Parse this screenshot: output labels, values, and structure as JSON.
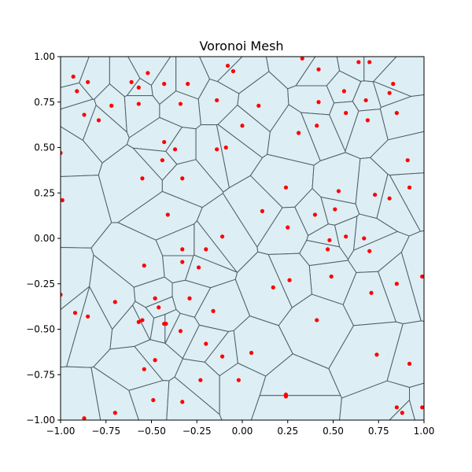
{
  "chart_data": {
    "type": "scatter",
    "title": "Voronoi Mesh",
    "xlabel": "",
    "ylabel": "",
    "xlim": [
      -1.0,
      1.0
    ],
    "ylim": [
      -1.0,
      1.0
    ],
    "xticks": [
      "−1.00",
      "−0.75",
      "−0.50",
      "−0.25",
      "0.00",
      "0.25",
      "0.50",
      "0.75",
      "1.00"
    ],
    "yticks": [
      "−1.00",
      "−0.75",
      "−0.50",
      "−0.25",
      "0.00",
      "0.25",
      "0.50",
      "0.75",
      "1.00"
    ],
    "grid": false,
    "legend": "none",
    "colors": {
      "cell_fill": "#ddeef5",
      "cell_edge": "#4f5f66",
      "point": "#ff0000"
    },
    "points": [
      [
        -0.93,
        0.89
      ],
      [
        -0.91,
        0.81
      ],
      [
        -0.85,
        0.86
      ],
      [
        -0.87,
        0.68
      ],
      [
        -0.79,
        0.65
      ],
      [
        -0.72,
        0.73
      ],
      [
        -0.61,
        0.86
      ],
      [
        -0.57,
        0.83
      ],
      [
        -0.57,
        0.74
      ],
      [
        -0.52,
        0.91
      ],
      [
        -0.43,
        0.85
      ],
      [
        -0.34,
        0.74
      ],
      [
        -0.3,
        0.85
      ],
      [
        -0.14,
        0.76
      ],
      [
        -0.08,
        0.95
      ],
      [
        -0.05,
        0.92
      ],
      [
        0.0,
        0.62
      ],
      [
        0.09,
        0.73
      ],
      [
        0.33,
        0.99
      ],
      [
        0.42,
        0.93
      ],
      [
        0.42,
        0.75
      ],
      [
        0.41,
        0.62
      ],
      [
        0.31,
        0.58
      ],
      [
        0.56,
        0.81
      ],
      [
        0.64,
        0.97
      ],
      [
        0.7,
        0.97
      ],
      [
        0.81,
        0.8
      ],
      [
        0.83,
        0.85
      ],
      [
        0.68,
        0.76
      ],
      [
        0.69,
        0.65
      ],
      [
        0.85,
        0.69
      ],
      [
        0.57,
        0.69
      ],
      [
        -1.0,
        0.47
      ],
      [
        -0.43,
        0.53
      ],
      [
        -0.37,
        0.49
      ],
      [
        -0.44,
        0.43
      ],
      [
        -0.14,
        0.49
      ],
      [
        -0.09,
        0.5
      ],
      [
        -0.55,
        0.33
      ],
      [
        -0.33,
        0.33
      ],
      [
        -0.41,
        0.13
      ],
      [
        -0.99,
        0.21
      ],
      [
        0.24,
        0.28
      ],
      [
        0.53,
        0.26
      ],
      [
        0.51,
        0.16
      ],
      [
        0.73,
        0.24
      ],
      [
        0.81,
        0.22
      ],
      [
        0.91,
        0.43
      ],
      [
        0.92,
        0.28
      ],
      [
        0.11,
        0.15
      ],
      [
        0.4,
        0.13
      ],
      [
        0.25,
        0.06
      ],
      [
        -0.11,
        0.01
      ],
      [
        -0.2,
        -0.06
      ],
      [
        -0.33,
        -0.06
      ],
      [
        -0.33,
        -0.13
      ],
      [
        -0.24,
        -0.16
      ],
      [
        -0.54,
        -0.15
      ],
      [
        0.48,
        -0.01
      ],
      [
        0.47,
        -0.06
      ],
      [
        0.57,
        0.01
      ],
      [
        0.67,
        0.0
      ],
      [
        0.7,
        -0.07
      ],
      [
        0.85,
        -0.25
      ],
      [
        0.99,
        -0.21
      ],
      [
        0.49,
        -0.21
      ],
      [
        0.26,
        -0.23
      ],
      [
        0.17,
        -0.27
      ],
      [
        -1.0,
        -0.31
      ],
      [
        -0.7,
        -0.35
      ],
      [
        -0.48,
        -0.33
      ],
      [
        -0.29,
        -0.33
      ],
      [
        -0.46,
        -0.38
      ],
      [
        -0.16,
        -0.4
      ],
      [
        -0.92,
        -0.41
      ],
      [
        -0.85,
        -0.43
      ],
      [
        -0.57,
        -0.46
      ],
      [
        -0.55,
        -0.45
      ],
      [
        -0.43,
        -0.47
      ],
      [
        -0.42,
        -0.47
      ],
      [
        -0.34,
        -0.51
      ],
      [
        0.41,
        -0.45
      ],
      [
        0.71,
        -0.3
      ],
      [
        -0.2,
        -0.58
      ],
      [
        -0.11,
        -0.65
      ],
      [
        0.05,
        -0.63
      ],
      [
        -0.48,
        -0.67
      ],
      [
        -0.54,
        -0.72
      ],
      [
        0.74,
        -0.64
      ],
      [
        0.92,
        -0.69
      ],
      [
        -0.23,
        -0.78
      ],
      [
        -0.02,
        -0.78
      ],
      [
        -0.49,
        -0.89
      ],
      [
        -0.33,
        -0.9
      ],
      [
        0.24,
        -0.86
      ],
      [
        0.24,
        -0.87
      ],
      [
        0.85,
        -0.93
      ],
      [
        0.88,
        -0.96
      ],
      [
        0.99,
        -0.93
      ],
      [
        -0.7,
        -0.96
      ],
      [
        -0.87,
        -0.99
      ]
    ]
  }
}
